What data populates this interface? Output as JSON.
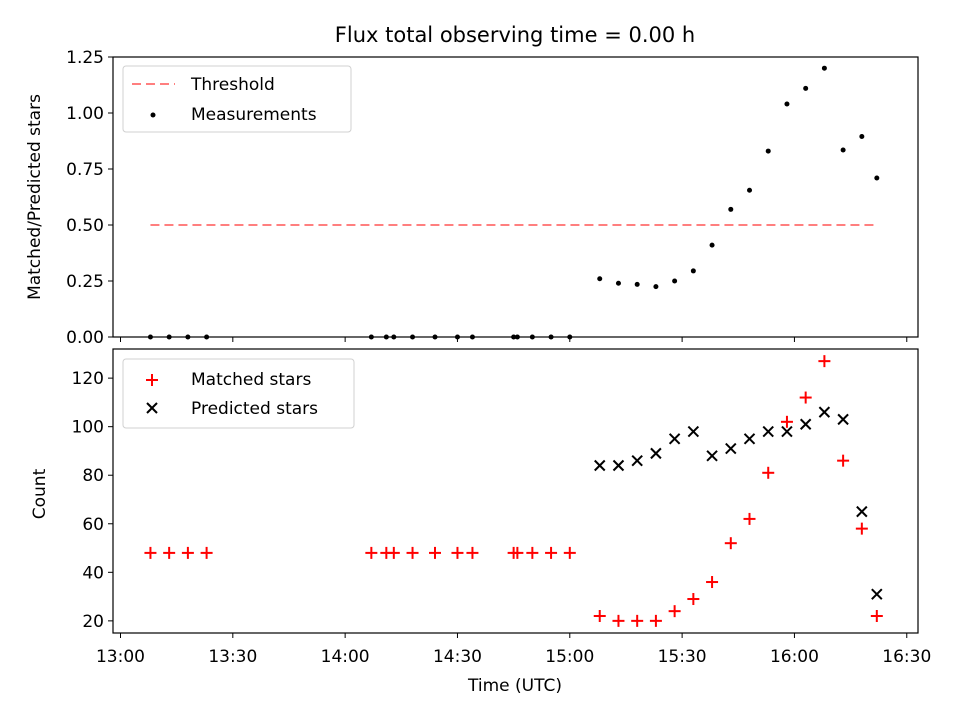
{
  "colors": {
    "threshold": "#ff7f7f",
    "measurements": "#000000",
    "matched": "#ff0000",
    "predicted": "#000000"
  },
  "chart_data": [
    {
      "type": "scatter",
      "title": "Flux total observing time = 0.00 h",
      "xlabel": "",
      "ylabel": "Matched/Predicted stars",
      "x_unit": "time (UTC)",
      "xlim": [
        "12:58",
        "16:33"
      ],
      "ylim": [
        0,
        1.25
      ],
      "yticks": [
        0.0,
        0.25,
        0.5,
        0.75,
        1.0,
        1.25
      ],
      "ytick_labels": [
        "0.00",
        "0.25",
        "0.50",
        "0.75",
        "1.00",
        "1.25"
      ],
      "legend_position": "top-left",
      "grid": false,
      "series": [
        {
          "name": "Threshold",
          "kind": "dashed-line",
          "points": [
            [
              "13:08",
              0.5
            ],
            [
              "16:22",
              0.5
            ]
          ]
        },
        {
          "name": "Measurements",
          "kind": "dot",
          "points": [
            [
              "13:08",
              0.0
            ],
            [
              "13:13",
              0.0
            ],
            [
              "13:18",
              0.0
            ],
            [
              "13:23",
              0.0
            ],
            [
              "14:07",
              0.0
            ],
            [
              "14:11",
              0.0
            ],
            [
              "14:13",
              0.0
            ],
            [
              "14:18",
              0.0
            ],
            [
              "14:24",
              0.0
            ],
            [
              "14:30",
              0.0
            ],
            [
              "14:34",
              0.0
            ],
            [
              "14:45",
              0.0
            ],
            [
              "14:46",
              0.0
            ],
            [
              "14:50",
              0.0
            ],
            [
              "14:55",
              0.0
            ],
            [
              "15:00",
              0.0
            ],
            [
              "15:08",
              0.26
            ],
            [
              "15:13",
              0.24
            ],
            [
              "15:18",
              0.235
            ],
            [
              "15:23",
              0.225
            ],
            [
              "15:28",
              0.25
            ],
            [
              "15:33",
              0.295
            ],
            [
              "15:38",
              0.41
            ],
            [
              "15:43",
              0.57
            ],
            [
              "15:48",
              0.655
            ],
            [
              "15:53",
              0.83
            ],
            [
              "15:58",
              1.04
            ],
            [
              "16:03",
              1.11
            ],
            [
              "16:08",
              1.2
            ],
            [
              "16:13",
              0.835
            ],
            [
              "16:18",
              0.895
            ],
            [
              "16:22",
              0.71
            ]
          ]
        }
      ]
    },
    {
      "type": "scatter",
      "title": "",
      "xlabel": "Time (UTC)",
      "ylabel": "Count",
      "xlim": [
        "12:58",
        "16:33"
      ],
      "ylim": [
        15,
        132
      ],
      "xticks": [
        "13:00",
        "13:30",
        "14:00",
        "14:30",
        "15:00",
        "15:30",
        "16:00",
        "16:30"
      ],
      "yticks": [
        20,
        40,
        60,
        80,
        100,
        120
      ],
      "legend_position": "top-left",
      "grid": false,
      "series": [
        {
          "name": "Matched stars",
          "marker": "plus",
          "points": [
            [
              "13:08",
              48
            ],
            [
              "13:13",
              48
            ],
            [
              "13:18",
              48
            ],
            [
              "13:23",
              48
            ],
            [
              "14:07",
              48
            ],
            [
              "14:11",
              48
            ],
            [
              "14:13",
              48
            ],
            [
              "14:18",
              48
            ],
            [
              "14:24",
              48
            ],
            [
              "14:30",
              48
            ],
            [
              "14:34",
              48
            ],
            [
              "14:45",
              48
            ],
            [
              "14:46",
              48
            ],
            [
              "14:50",
              48
            ],
            [
              "14:55",
              48
            ],
            [
              "15:00",
              48
            ],
            [
              "15:08",
              22
            ],
            [
              "15:13",
              20
            ],
            [
              "15:18",
              20
            ],
            [
              "15:23",
              20
            ],
            [
              "15:28",
              24
            ],
            [
              "15:33",
              29
            ],
            [
              "15:38",
              36
            ],
            [
              "15:43",
              52
            ],
            [
              "15:48",
              62
            ],
            [
              "15:53",
              81
            ],
            [
              "15:58",
              102
            ],
            [
              "16:03",
              112
            ],
            [
              "16:08",
              127
            ],
            [
              "16:13",
              86
            ],
            [
              "16:18",
              58
            ],
            [
              "16:22",
              22
            ]
          ]
        },
        {
          "name": "Predicted stars",
          "marker": "x",
          "points": [
            [
              "15:08",
              84
            ],
            [
              "15:13",
              84
            ],
            [
              "15:18",
              86
            ],
            [
              "15:23",
              89
            ],
            [
              "15:28",
              95
            ],
            [
              "15:33",
              98
            ],
            [
              "15:38",
              88
            ],
            [
              "15:43",
              91
            ],
            [
              "15:48",
              95
            ],
            [
              "15:53",
              98
            ],
            [
              "15:58",
              98
            ],
            [
              "16:03",
              101
            ],
            [
              "16:08",
              106
            ],
            [
              "16:13",
              103
            ],
            [
              "16:18",
              65
            ],
            [
              "16:22",
              31
            ]
          ]
        }
      ]
    }
  ]
}
